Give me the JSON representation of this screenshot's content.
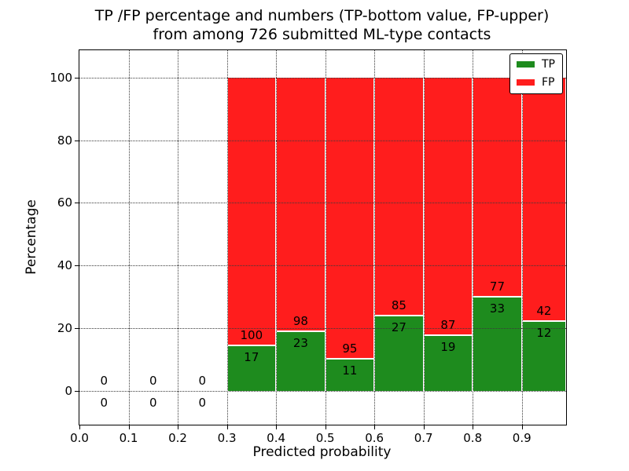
{
  "chart_data": {
    "type": "bar",
    "stacked": true,
    "title_line1": "TP /FP percentage and numbers (TP-bottom value, FP-upper)",
    "title_line2": "from among 726 submitted ML-type contacts",
    "xlabel": "Predicted probability",
    "ylabel": "Percentage",
    "total_contacts": 726,
    "xlim": [
      0.0,
      0.99
    ],
    "ylim": [
      -10.75,
      108.7
    ],
    "xticks": [
      0.0,
      0.1,
      0.2,
      0.3,
      0.4,
      0.5,
      0.6,
      0.7,
      0.8,
      0.9
    ],
    "yticks": [
      0,
      20,
      40,
      60,
      80,
      100
    ],
    "grid": true,
    "grid_style": "dotted",
    "colors": {
      "tp": "#1E8B1E",
      "fp": "#FF1D1D"
    },
    "legend": {
      "position": "upper right",
      "items": [
        {
          "label": "TP",
          "color": "#1E8B1E"
        },
        {
          "label": "FP",
          "color": "#FF1D1D"
        }
      ]
    },
    "bins": [
      {
        "x_start": 0.0,
        "x_end": 0.1,
        "tp_count": 0,
        "fp_count": 0,
        "tp_pct": 0,
        "fp_pct": 0
      },
      {
        "x_start": 0.1,
        "x_end": 0.2,
        "tp_count": 0,
        "fp_count": 0,
        "tp_pct": 0,
        "fp_pct": 0
      },
      {
        "x_start": 0.2,
        "x_end": 0.3,
        "tp_count": 0,
        "fp_count": 0,
        "tp_pct": 0,
        "fp_pct": 0
      },
      {
        "x_start": 0.3,
        "x_end": 0.4,
        "tp_count": 17,
        "fp_count": 100,
        "tp_pct": 14.53,
        "fp_pct": 85.47
      },
      {
        "x_start": 0.4,
        "x_end": 0.5,
        "tp_count": 23,
        "fp_count": 98,
        "tp_pct": 19.01,
        "fp_pct": 80.99
      },
      {
        "x_start": 0.5,
        "x_end": 0.6,
        "tp_count": 11,
        "fp_count": 95,
        "tp_pct": 10.38,
        "fp_pct": 89.62
      },
      {
        "x_start": 0.6,
        "x_end": 0.7,
        "tp_count": 27,
        "fp_count": 85,
        "tp_pct": 24.11,
        "fp_pct": 75.89
      },
      {
        "x_start": 0.7,
        "x_end": 0.8,
        "tp_count": 19,
        "fp_count": 87,
        "tp_pct": 17.92,
        "fp_pct": 82.08
      },
      {
        "x_start": 0.8,
        "x_end": 0.9,
        "tp_count": 33,
        "fp_count": 77,
        "tp_pct": 30.0,
        "fp_pct": 70.0
      },
      {
        "x_start": 0.9,
        "x_end": 0.99,
        "tp_count": 12,
        "fp_count": 42,
        "tp_pct": 22.22,
        "fp_pct": 77.78
      }
    ]
  }
}
